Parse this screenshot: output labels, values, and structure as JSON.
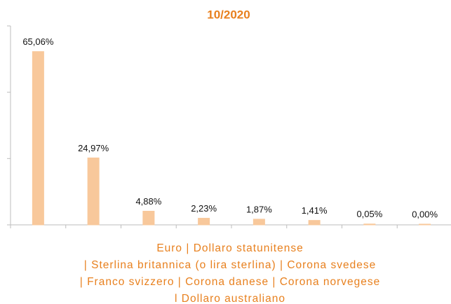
{
  "chart_data": {
    "type": "bar",
    "title": "10/2020",
    "categories": [
      null,
      null,
      null,
      null,
      null,
      null,
      null,
      null
    ],
    "values": [
      65.06,
      24.97,
      4.88,
      2.23,
      1.87,
      1.41,
      0.05,
      0.0
    ],
    "value_labels": [
      "65,06%",
      "24,97%",
      "4,88%",
      "2,23%",
      "1,87%",
      "1,41%",
      "0,05%",
      "0,00%"
    ],
    "color": "#f8c89b",
    "xlabel": [
      "Euro | Dollaro statunitense",
      "| Sterlina britannica (o lira sterlina) | Corona svedese",
      "| Franco svizzero | Corona danese | Corona norvegese",
      "l Dollaro australiano"
    ],
    "ylim": [
      0,
      75
    ],
    "yticks": [
      0,
      25,
      50,
      75
    ],
    "grid": false
  }
}
